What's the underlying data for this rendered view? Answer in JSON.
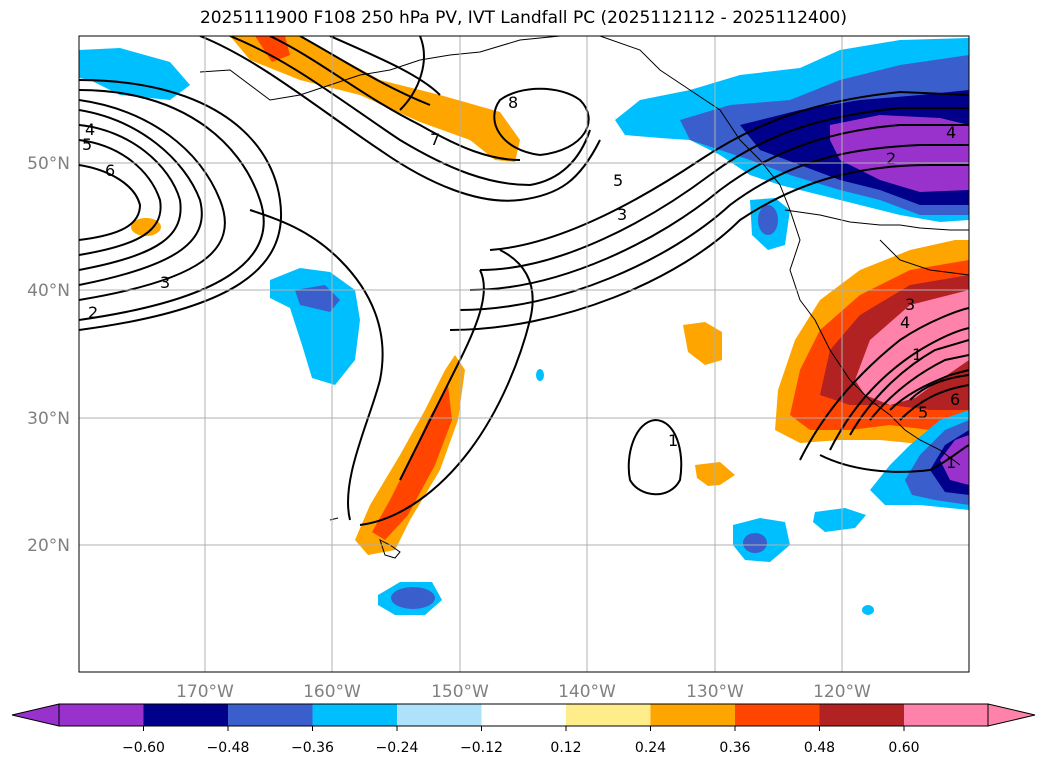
{
  "title": "2025111900 F108 250 hPa PV, IVT Landfall PC (2025112112 - 2025112400)",
  "lat_labels": [
    "50°N",
    "40°N",
    "30°N",
    "20°N"
  ],
  "lon_labels": [
    "170°W",
    "160°W",
    "150°W",
    "140°W",
    "130°W",
    "120°W"
  ],
  "colorbar": {
    "ticks": [
      "−0.60",
      "−0.48",
      "−0.36",
      "−0.24",
      "−0.12",
      "0.12",
      "0.24",
      "0.36",
      "0.48",
      "0.60"
    ],
    "colors": [
      "#9932CC",
      "#00008B",
      "#3A5FCD",
      "#00BFFF",
      "#AEE1FA",
      "#FFFFFF",
      "#FFEC8B",
      "#FFA500",
      "#FF4500",
      "#B22222",
      "#FF82AB",
      "#FF82AB"
    ]
  },
  "contour_labels": [
    "4",
    "5",
    "6",
    "2",
    "3",
    "7",
    "8",
    "5",
    "3",
    "4",
    "2",
    "3",
    "4",
    "1",
    "5",
    "6",
    "1",
    "1"
  ]
}
